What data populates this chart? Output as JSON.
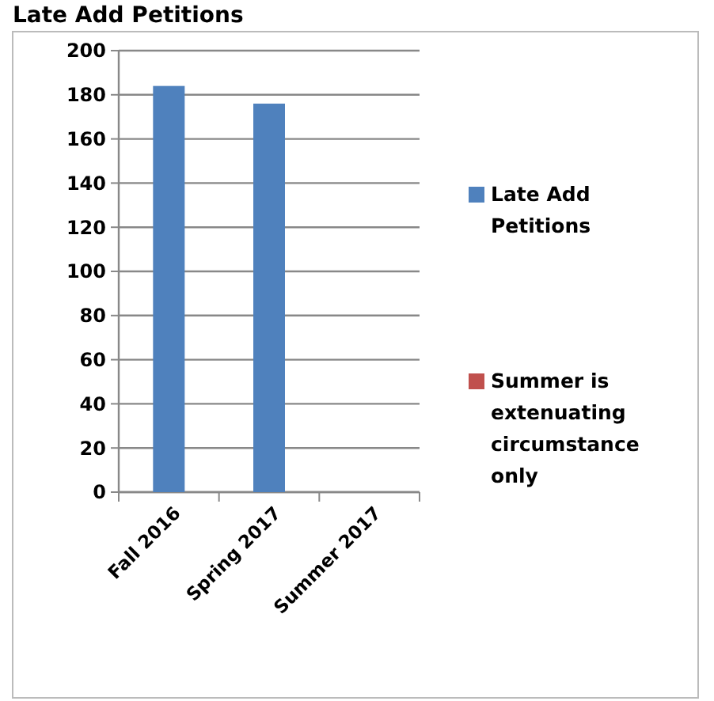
{
  "chart_data": {
    "type": "bar",
    "title": "Late Add Petitions",
    "categories": [
      "Fall 2016",
      "Spring 2017",
      "Summer 2017"
    ],
    "series": [
      {
        "name": "Late Add Petitions",
        "color": "#4f81bd",
        "values": [
          184,
          176,
          null
        ]
      },
      {
        "name": "Summer is extenuating circumstance only",
        "color": "#c0504d",
        "values": [
          null,
          null,
          null
        ]
      }
    ],
    "ylim": [
      0,
      200
    ],
    "yticks": [
      0,
      20,
      40,
      60,
      80,
      100,
      120,
      140,
      160,
      180,
      200
    ],
    "grid": "y",
    "legend": "right"
  }
}
